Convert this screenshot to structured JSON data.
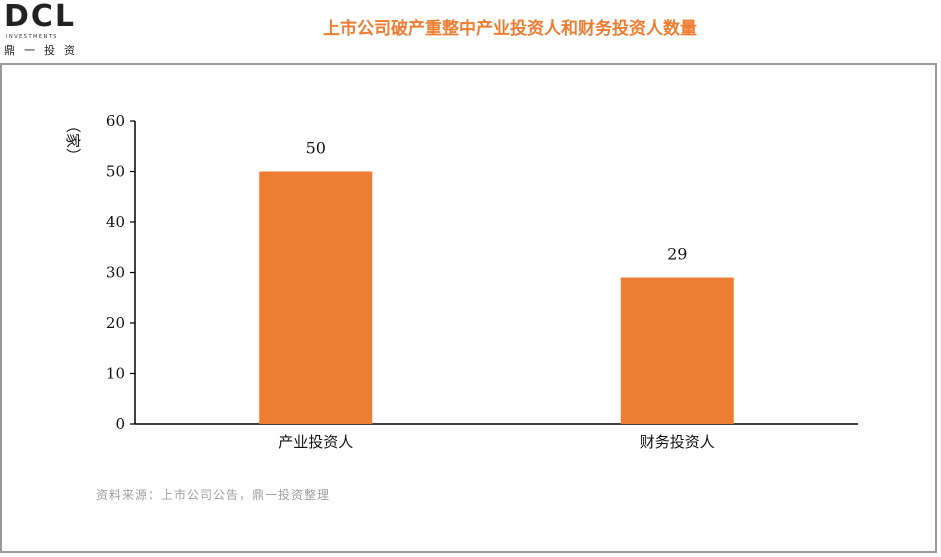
{
  "logo": {
    "mark": "DCL",
    "sub": "INVESTMENTS",
    "cn": "鼎一投资"
  },
  "colors": {
    "accent": "#ED7D31",
    "bar": "#ED7D31",
    "frame": "#9a9a9a"
  },
  "source_note": "资料来源：上市公司公告，鼎一投资整理",
  "chart_data": {
    "type": "bar",
    "title": "上市公司破产重整中产业投资人和财务投资人数量",
    "ylabel": "（家）",
    "xlabel": "",
    "categories": [
      "产业投资人",
      "财务投资人"
    ],
    "values": [
      50,
      29
    ],
    "ylim": [
      0,
      60
    ],
    "yticks": [
      0,
      10,
      20,
      30,
      40,
      50,
      60
    ],
    "data_labels": [
      "50",
      "29"
    ],
    "grid": false,
    "legend": "none"
  }
}
